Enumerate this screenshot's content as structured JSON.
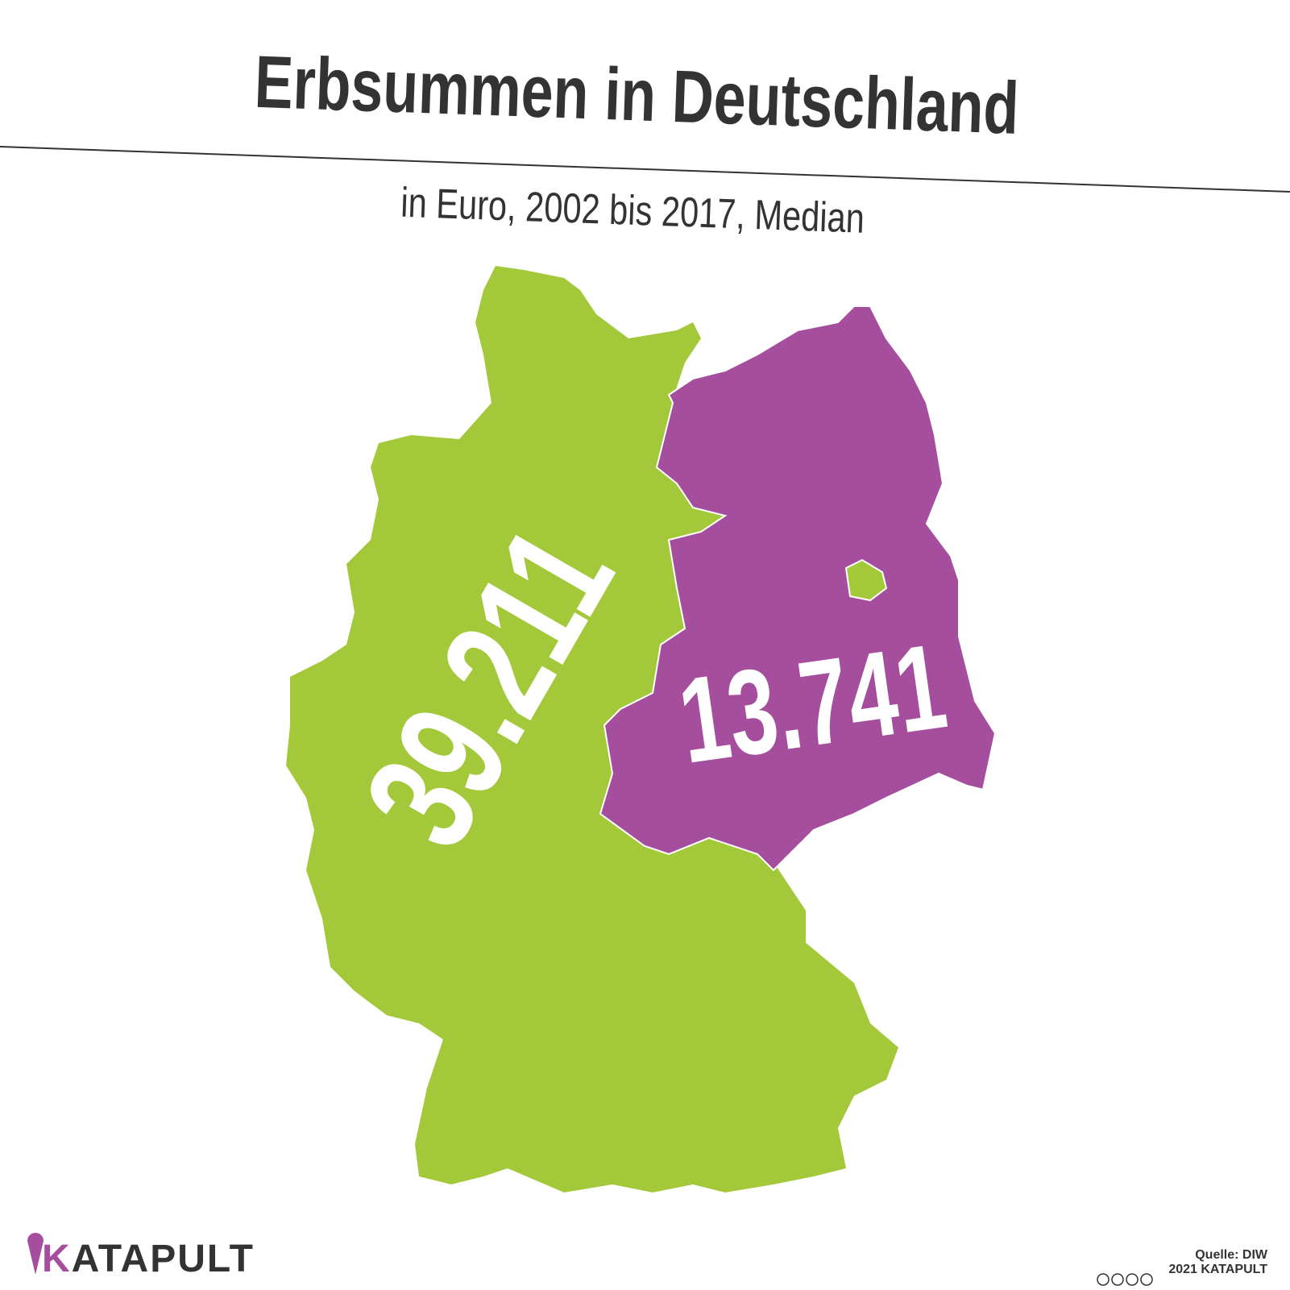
{
  "header": {
    "title": "Erbsummen in Deutschland",
    "subtitle": "in Euro, 2002 bis 2017, Median"
  },
  "regions": [
    {
      "label": "39.211"
    },
    {
      "label": "13.741"
    }
  ],
  "footer": {
    "logo": "KATAPULT",
    "source": "Quelle: DIW",
    "copyright": "2021 KATAPULT"
  }
}
